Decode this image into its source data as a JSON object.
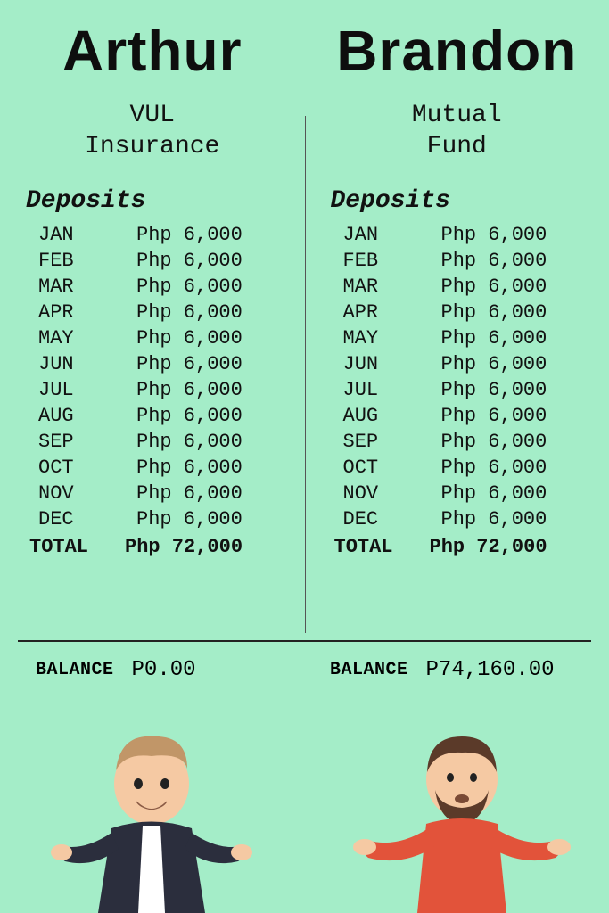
{
  "background_color": "#a4edc8",
  "text_color": "#111111",
  "persons": [
    {
      "name": "Arthur",
      "product_line1": "VUL",
      "product_line2": "Insurance",
      "deposits_label": "Deposits",
      "months": [
        {
          "m": "JAN",
          "a": "Php 6,000"
        },
        {
          "m": "FEB",
          "a": "Php 6,000"
        },
        {
          "m": "MAR",
          "a": "Php 6,000"
        },
        {
          "m": "APR",
          "a": "Php 6,000"
        },
        {
          "m": "MAY",
          "a": "Php 6,000"
        },
        {
          "m": "JUN",
          "a": "Php 6,000"
        },
        {
          "m": "JUL",
          "a": "Php 6,000"
        },
        {
          "m": "AUG",
          "a": "Php 6,000"
        },
        {
          "m": "SEP",
          "a": "Php 6,000"
        },
        {
          "m": "OCT",
          "a": "Php 6,000"
        },
        {
          "m": "NOV",
          "a": "Php 6,000"
        },
        {
          "m": "DEC",
          "a": "Php 6,000"
        }
      ],
      "total_label": "TOTAL",
      "total_amount": "Php 72,000",
      "balance_label": "BALANCE",
      "balance_amount": "P0.00",
      "character": {
        "skin": "#f5c9a3",
        "hair": "#c19668",
        "jacket": "#2b2e3d",
        "shirt": "#ffffff"
      }
    },
    {
      "name": "Brandon",
      "product_line1": "Mutual",
      "product_line2": "Fund",
      "deposits_label": "Deposits",
      "months": [
        {
          "m": "JAN",
          "a": "Php 6,000"
        },
        {
          "m": "FEB",
          "a": "Php 6,000"
        },
        {
          "m": "MAR",
          "a": "Php 6,000"
        },
        {
          "m": "APR",
          "a": "Php 6,000"
        },
        {
          "m": "MAY",
          "a": "Php 6,000"
        },
        {
          "m": "JUN",
          "a": "Php 6,000"
        },
        {
          "m": "JUL",
          "a": "Php 6,000"
        },
        {
          "m": "AUG",
          "a": "Php 6,000"
        },
        {
          "m": "SEP",
          "a": "Php 6,000"
        },
        {
          "m": "OCT",
          "a": "Php 6,000"
        },
        {
          "m": "NOV",
          "a": "Php 6,000"
        },
        {
          "m": "DEC",
          "a": "Php 6,000"
        }
      ],
      "total_label": "TOTAL",
      "total_amount": "Php 72,000",
      "balance_label": "BALANCE",
      "balance_amount": "P74,160.00",
      "character": {
        "skin": "#f5c9a3",
        "hair": "#5b3a29",
        "shirt": "#e2533a"
      }
    }
  ]
}
